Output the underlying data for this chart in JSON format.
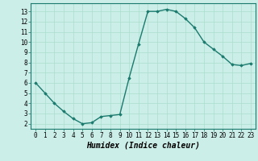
{
  "x": [
    0,
    1,
    2,
    3,
    4,
    5,
    6,
    7,
    8,
    9,
    10,
    11,
    12,
    13,
    14,
    15,
    16,
    17,
    18,
    19,
    20,
    21,
    22,
    23
  ],
  "y": [
    6.0,
    5.0,
    4.0,
    3.2,
    2.5,
    2.0,
    2.1,
    2.7,
    2.8,
    2.9,
    6.5,
    9.8,
    13.0,
    13.0,
    13.2,
    13.0,
    12.3,
    11.4,
    10.0,
    9.3,
    8.6,
    7.8,
    7.7,
    7.9
  ],
  "line_color": "#1a7a6e",
  "marker": "D",
  "marker_size": 1.8,
  "line_width": 1.0,
  "xlabel": "Humidex (Indice chaleur)",
  "xlabel_fontsize": 7,
  "xlim_min": -0.5,
  "xlim_max": 23.5,
  "ylim_min": 1.5,
  "ylim_max": 13.8,
  "yticks": [
    2,
    3,
    4,
    5,
    6,
    7,
    8,
    9,
    10,
    11,
    12,
    13
  ],
  "xticks": [
    0,
    1,
    2,
    3,
    4,
    5,
    6,
    7,
    8,
    9,
    10,
    11,
    12,
    13,
    14,
    15,
    16,
    17,
    18,
    19,
    20,
    21,
    22,
    23
  ],
  "bg_color": "#cceee8",
  "grid_color": "#aaddcc",
  "tick_fontsize": 5.5,
  "spine_color": "#1a7a6e"
}
